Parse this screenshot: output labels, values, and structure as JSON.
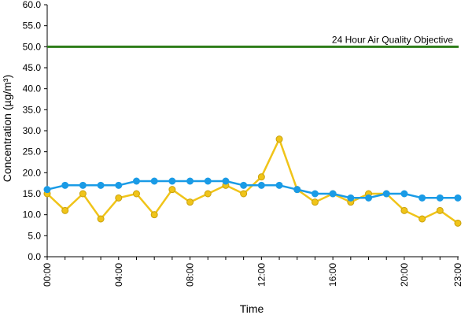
{
  "chart_data": {
    "type": "line",
    "xlabel": "Time",
    "ylabel": "Concentration (µg/m³)",
    "ylim": [
      0,
      60
    ],
    "y_ticks": [
      "0.0",
      "5.0",
      "10.0",
      "15.0",
      "20.0",
      "25.0",
      "30.0",
      "35.0",
      "40.0",
      "45.0",
      "50.0",
      "55.0",
      "60.0"
    ],
    "x_tick_labels": [
      "00:00",
      "04:00",
      "08:00",
      "12:00",
      "16:00",
      "20:00",
      "23:00"
    ],
    "x_tick_hours": [
      0,
      4,
      8,
      12,
      16,
      20,
      23
    ],
    "x_hours": [
      0,
      1,
      2,
      3,
      4,
      5,
      6,
      7,
      8,
      9,
      10,
      11,
      12,
      13,
      14,
      15,
      16,
      17,
      18,
      19,
      20,
      21,
      22,
      23
    ],
    "grid": false,
    "reference_line": {
      "value": 50,
      "label": "24 Hour Air Quality Objective",
      "color": "#2e7d1a"
    },
    "series": [
      {
        "color": "#f0c419",
        "values": [
          15,
          11,
          15,
          9,
          14,
          15,
          10,
          16,
          13,
          15,
          17,
          15,
          19,
          28,
          16,
          13,
          15,
          13,
          15,
          15,
          11,
          9,
          11,
          8
        ]
      },
      {
        "color": "#1a9be6",
        "values": [
          16,
          17,
          17,
          17,
          17,
          18,
          18,
          18,
          18,
          18,
          18,
          17,
          17,
          17,
          16,
          15,
          15,
          14,
          14,
          15,
          15,
          14,
          14,
          14
        ]
      }
    ]
  }
}
